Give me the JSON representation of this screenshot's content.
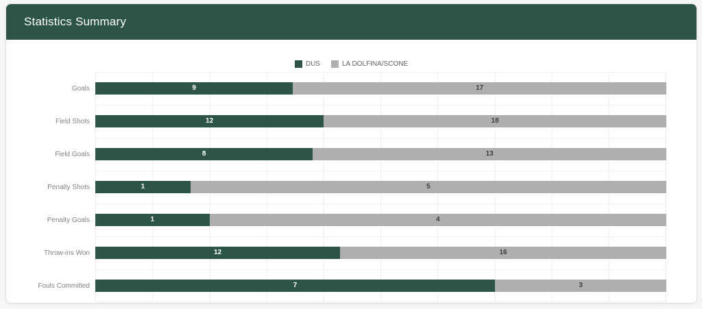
{
  "header": {
    "title": "Statistics Summary"
  },
  "theme": {
    "header_bg": "#2d5448",
    "card_bg": "#ffffff",
    "page_bg": "#f5f6f6",
    "grid_color": "#ededed",
    "label_color": "#818181"
  },
  "chart_data": {
    "type": "bar",
    "orientation": "horizontal",
    "stacked": "100%",
    "title": "Statistics Summary",
    "categories": [
      "Goals",
      "Field Shots",
      "Field Goals",
      "Penalty Shots",
      "Penalty Goals",
      "Throw-ins Won",
      "Fouls Committed"
    ],
    "series": [
      {
        "name": "DUS",
        "color": "#2d5448",
        "values": [
          9,
          12,
          8,
          1,
          1,
          12,
          7
        ]
      },
      {
        "name": "LA DOLFINA/SCONE",
        "color": "#b1aeae",
        "values": [
          17,
          18,
          13,
          5,
          4,
          16,
          3
        ]
      }
    ],
    "legend_position": "top-center",
    "value_labels": "inside-center",
    "grid": true,
    "x_axis_tick_labels": "none",
    "x_gridline_interval_percent": 10
  }
}
